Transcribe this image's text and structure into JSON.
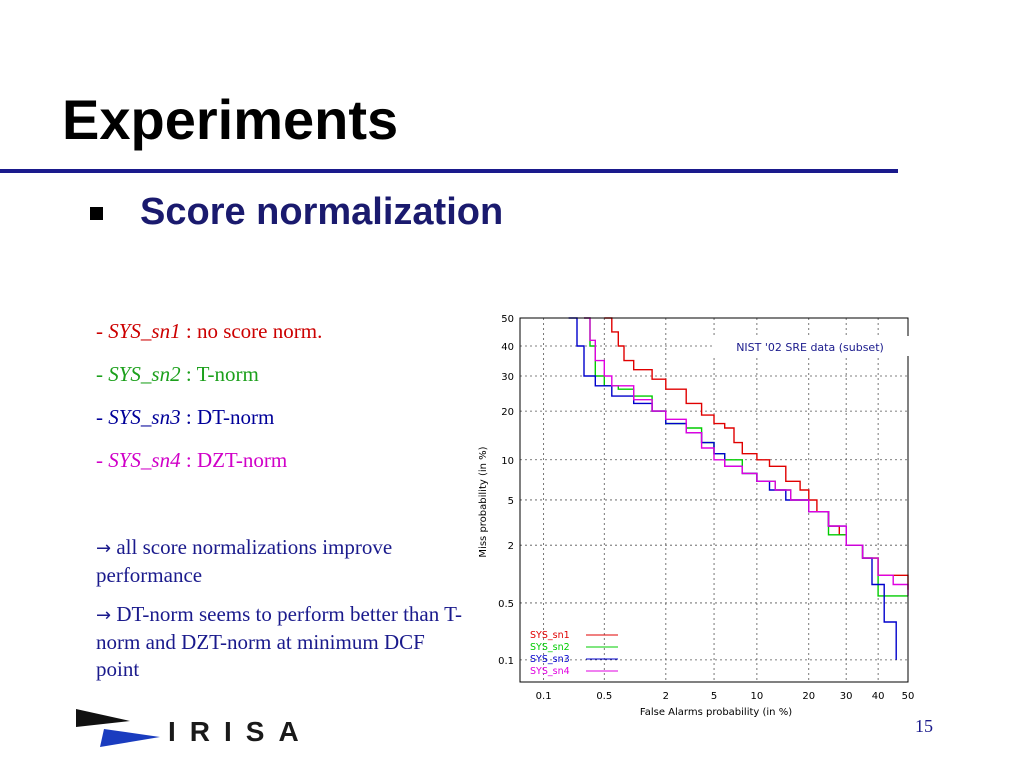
{
  "slide": {
    "title": "Experiments",
    "subtitle": "Score normalization",
    "page_number": "15",
    "logo_text": "IRISA"
  },
  "systems": [
    {
      "prefix": "- ",
      "name": "SYS_sn1",
      "desc": " : no score norm.",
      "color": "#cc0000"
    },
    {
      "prefix": "- ",
      "name": "SYS_sn2",
      "desc": " : T-norm",
      "color": "#1ca01c"
    },
    {
      "prefix": "- ",
      "name": "SYS_sn3",
      "desc": " : DT-norm",
      "color": "#000099"
    },
    {
      "prefix": "- ",
      "name": "SYS_sn4",
      "desc": " : DZT-norm",
      "color": "#d000c8"
    }
  ],
  "notes": [
    {
      "arrow": "→",
      "text": " all score normalizations improve performance"
    },
    {
      "arrow": "→",
      "text": " DT-norm seems to perform better than T-norm and DZT-norm at minimum DCF point"
    }
  ],
  "chart_data": {
    "type": "line",
    "title": "NIST '02 SRE data (subset)",
    "xlabel": "False Alarms probability (in %)",
    "ylabel": "Miss probability (in %)",
    "scale": "normal-deviate (DET)",
    "xlim": [
      0.05,
      50
    ],
    "ylim": [
      0.05,
      50
    ],
    "xticks": [
      0.1,
      0.5,
      2,
      5,
      10,
      20,
      30,
      40,
      50
    ],
    "xtick_labels": [
      "0.1",
      "0.5",
      "2",
      "5",
      "10",
      "20",
      "30",
      "40",
      "50"
    ],
    "yticks": [
      0.1,
      0.5,
      2,
      5,
      10,
      20,
      30,
      40,
      50
    ],
    "ytick_labels": [
      "0.1",
      "0.5",
      "2",
      "5",
      "10",
      "20",
      "30",
      "40",
      "50"
    ],
    "grid": true,
    "legend_position": "bottom-left",
    "series": [
      {
        "name": "SYS_sn1",
        "color": "#e00000",
        "points": [
          [
            0.5,
            50
          ],
          [
            0.6,
            45
          ],
          [
            0.7,
            40
          ],
          [
            0.8,
            35
          ],
          [
            1,
            32
          ],
          [
            1.5,
            29
          ],
          [
            2,
            26
          ],
          [
            3,
            22
          ],
          [
            4,
            19
          ],
          [
            5,
            17
          ],
          [
            6,
            16
          ],
          [
            7,
            13
          ],
          [
            8,
            11
          ],
          [
            10,
            10
          ],
          [
            12,
            9
          ],
          [
            15,
            7
          ],
          [
            18,
            6
          ],
          [
            20,
            5
          ],
          [
            22,
            4
          ],
          [
            25,
            3
          ],
          [
            28,
            2.5
          ],
          [
            30,
            2
          ],
          [
            35,
            1.5
          ],
          [
            38,
            1.5
          ],
          [
            40,
            1
          ],
          [
            45,
            1
          ],
          [
            50,
            0.7
          ]
        ]
      },
      {
        "name": "SYS_sn2",
        "color": "#00cc00",
        "points": [
          [
            0.3,
            50
          ],
          [
            0.35,
            40
          ],
          [
            0.4,
            30
          ],
          [
            0.5,
            27
          ],
          [
            0.7,
            26
          ],
          [
            1,
            24
          ],
          [
            1.5,
            20
          ],
          [
            2,
            17
          ],
          [
            3,
            16
          ],
          [
            4,
            13
          ],
          [
            5,
            11
          ],
          [
            6,
            10
          ],
          [
            8,
            8
          ],
          [
            10,
            7
          ],
          [
            13,
            6
          ],
          [
            16,
            5
          ],
          [
            20,
            4
          ],
          [
            25,
            2.5
          ],
          [
            30,
            2
          ],
          [
            35,
            1.5
          ],
          [
            40,
            0.6
          ],
          [
            45,
            0.6
          ],
          [
            50,
            0.6
          ]
        ]
      },
      {
        "name": "SYS_sn3",
        "color": "#0000cc",
        "points": [
          [
            0.2,
            50
          ],
          [
            0.25,
            40
          ],
          [
            0.3,
            30
          ],
          [
            0.4,
            27
          ],
          [
            0.6,
            24
          ],
          [
            1,
            22
          ],
          [
            1.5,
            20
          ],
          [
            2,
            17
          ],
          [
            3,
            15
          ],
          [
            4,
            13
          ],
          [
            5,
            11
          ],
          [
            6,
            9
          ],
          [
            8,
            8
          ],
          [
            10,
            7
          ],
          [
            12,
            6
          ],
          [
            15,
            5
          ],
          [
            20,
            4
          ],
          [
            25,
            3
          ],
          [
            30,
            2
          ],
          [
            35,
            1.5
          ],
          [
            38,
            0.8
          ],
          [
            42,
            0.3
          ],
          [
            46,
            0.1
          ]
        ]
      },
      {
        "name": "SYS_sn4",
        "color": "#e000e0",
        "points": [
          [
            0.3,
            50
          ],
          [
            0.35,
            42
          ],
          [
            0.4,
            35
          ],
          [
            0.5,
            30
          ],
          [
            0.6,
            27
          ],
          [
            1,
            23
          ],
          [
            1.5,
            20
          ],
          [
            2,
            18
          ],
          [
            3,
            15
          ],
          [
            4,
            12
          ],
          [
            5,
            10
          ],
          [
            6,
            9
          ],
          [
            8,
            8
          ],
          [
            10,
            7
          ],
          [
            13,
            6
          ],
          [
            16,
            5
          ],
          [
            20,
            4
          ],
          [
            25,
            3
          ],
          [
            30,
            2
          ],
          [
            35,
            1.5
          ],
          [
            40,
            1
          ],
          [
            45,
            0.8
          ],
          [
            50,
            0.6
          ]
        ]
      }
    ]
  }
}
